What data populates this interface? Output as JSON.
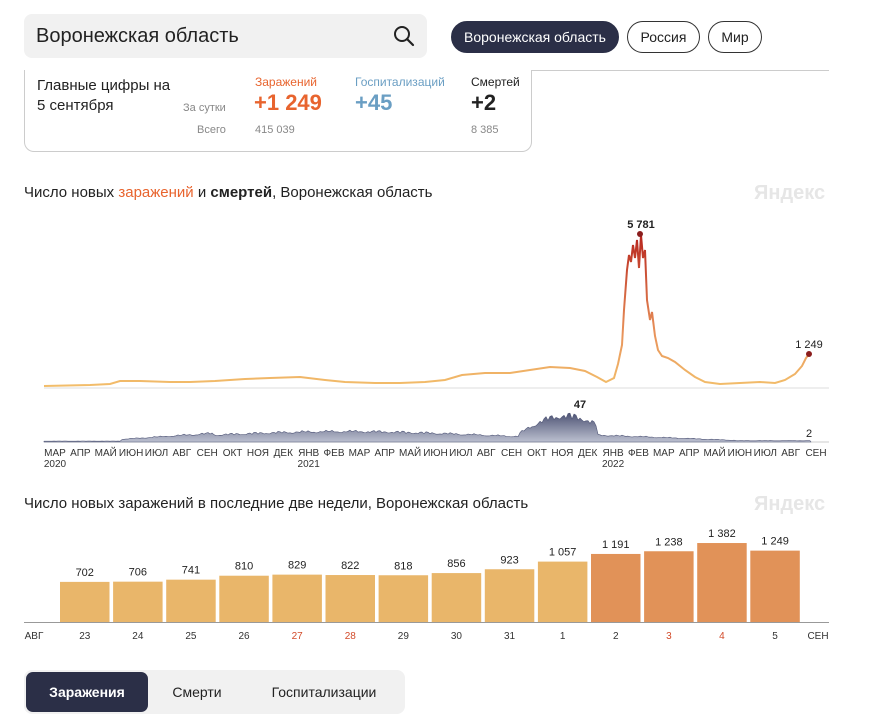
{
  "search": {
    "value": "Воронежская область"
  },
  "regions": [
    "Воронежская область",
    "Россия",
    "Мир"
  ],
  "summary": {
    "title": "Главные цифры на 5 сентября",
    "per_day_label": "За сутки",
    "total_label": "Всего",
    "columns": [
      {
        "label": "Заражений",
        "day": "+1 249",
        "total": "415 039",
        "color": "#e8642e"
      },
      {
        "label": "Госпитализаций",
        "day": "+45",
        "total": "",
        "color": "#6a9ec3"
      },
      {
        "label": "Смертей",
        "day": "+2",
        "total": "8 385",
        "color": "#222222"
      }
    ]
  },
  "chart1": {
    "title_part1": "Число новых ",
    "title_infections": "заражений",
    "title_part2": " и ",
    "title_deaths": "смертей",
    "title_part3": ", Воронежская область",
    "watermark": "Яндекс",
    "peak_label": "5 781",
    "last_label": "1 249",
    "deaths_peak_label": "47",
    "deaths_last_label": "2",
    "x_labels": [
      "МАР",
      "АПР",
      "МАЙ",
      "ИЮН",
      "ИЮЛ",
      "АВГ",
      "СЕН",
      "ОКТ",
      "НОЯ",
      "ДЕК",
      "ЯНВ",
      "ФЕВ",
      "МАР",
      "АПР",
      "МАЙ",
      "ИЮН",
      "ИЮЛ",
      "АВГ",
      "СЕН",
      "ОКТ",
      "НОЯ",
      "ДЕК",
      "ЯНВ",
      "ФЕВ",
      "МАР",
      "АПР",
      "МАЙ",
      "ИЮН",
      "ИЮЛ",
      "АВГ",
      "СЕН"
    ],
    "year_labels": [
      "2020",
      "2021",
      "2022"
    ]
  },
  "chart_data": [
    {
      "type": "area",
      "title": "Число новых заражений и смертей, Воронежская область",
      "series": [
        {
          "name": "заражений",
          "peak": 5781,
          "last": 1249
        },
        {
          "name": "смертей",
          "peak": 47,
          "last": 2
        }
      ]
    },
    {
      "type": "bar",
      "title": "Число новых заражений в последние две недели, Воронежская область",
      "categories": [
        "23",
        "24",
        "25",
        "26",
        "27",
        "28",
        "29",
        "30",
        "31",
        "1",
        "2",
        "3",
        "4",
        "5"
      ],
      "values": [
        702,
        706,
        741,
        810,
        829,
        822,
        818,
        856,
        923,
        1057,
        1191,
        1238,
        1382,
        1249
      ],
      "weekend": [
        false,
        false,
        false,
        false,
        true,
        true,
        false,
        false,
        false,
        false,
        false,
        true,
        true,
        false
      ],
      "month_start": "АВГ",
      "month_end": "СЕН",
      "colors": {
        "light": "#e9b66a",
        "dark": "#e19258",
        "weekend_label": "#d24b2a"
      }
    }
  ],
  "chart2": {
    "title": "Число новых заражений в последние две недели, Воронежская область",
    "watermark": "Яндекс"
  },
  "tabs": [
    "Заражения",
    "Смерти",
    "Госпитализации"
  ]
}
